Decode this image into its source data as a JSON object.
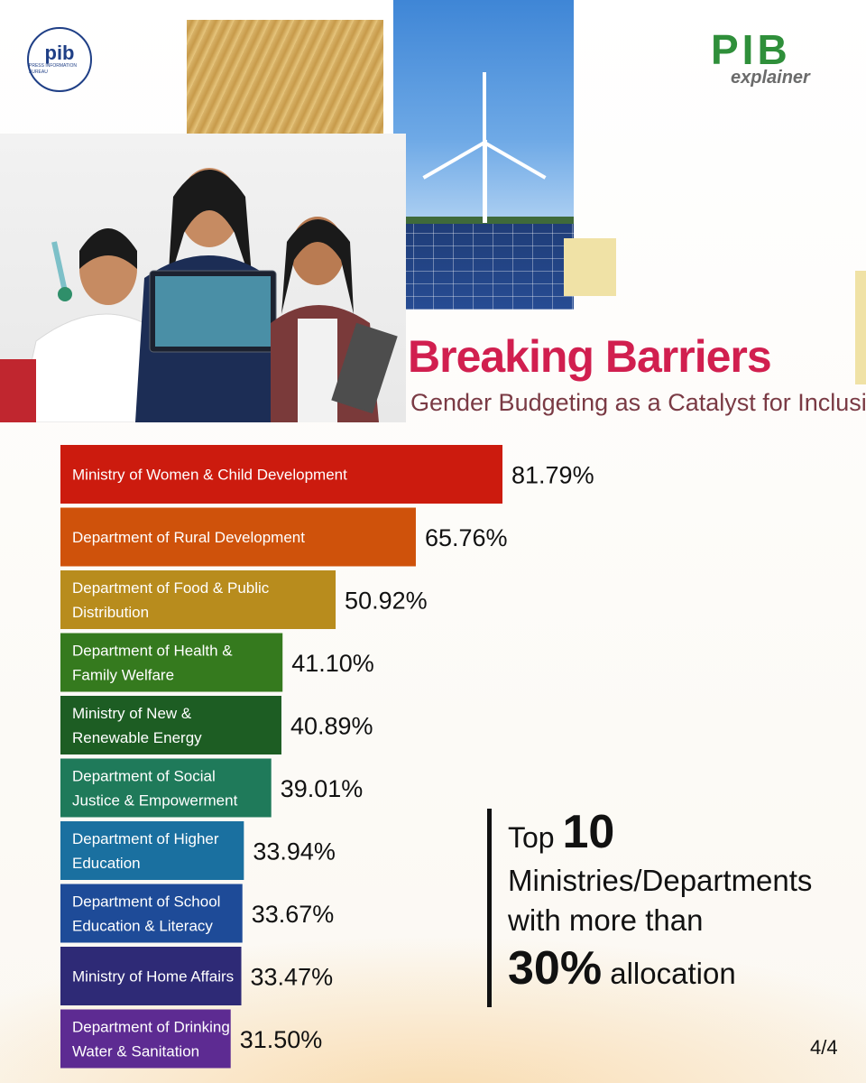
{
  "logos": {
    "pib_text": "pib",
    "pib_small": "PRESS INFORMATION BUREAU",
    "explainer_pib": "PIB",
    "explainer_word": "explainer"
  },
  "header": {
    "title": "Breaking Barriers",
    "subtitle": "Gender Budgeting as a Catalyst for Inclusion"
  },
  "chart_data": {
    "type": "bar",
    "orientation": "horizontal",
    "categories": [
      [
        "Ministry of Women & Child Development"
      ],
      [
        "Department of Rural Development"
      ],
      [
        "Department of Food & Public",
        "Distribution"
      ],
      [
        "Department of Health &",
        "Family Welfare"
      ],
      [
        "Ministry of New &",
        "Renewable Energy"
      ],
      [
        "Department of Social",
        "Justice & Empowerment"
      ],
      [
        "Department of Higher",
        "Education"
      ],
      [
        "Department of School",
        "Education & Literacy"
      ],
      [
        "Ministry of Home Affairs"
      ],
      [
        "Department of Drinking",
        "Water & Sanitation"
      ]
    ],
    "values": [
      81.79,
      65.76,
      50.92,
      41.1,
      40.89,
      39.01,
      33.94,
      33.67,
      33.47,
      31.5
    ],
    "value_labels": [
      "81.79%",
      "65.76%",
      "50.92%",
      "41.10%",
      "40.89%",
      "39.01%",
      "33.94%",
      "33.67%",
      "33.47%",
      "31.50%"
    ],
    "colors": [
      "#cc1b0e",
      "#cf520b",
      "#b88c1d",
      "#357a1e",
      "#1d5d23",
      "#1f7a5a",
      "#1a70a0",
      "#1e4b98",
      "#2e2a76",
      "#5d2b92"
    ]
  },
  "callout": {
    "top": "Top",
    "number": "10",
    "line2": "Ministries/Departments",
    "line3": "with more than",
    "pct": "30%",
    "allocation": "allocation"
  },
  "page_number": "4/4"
}
